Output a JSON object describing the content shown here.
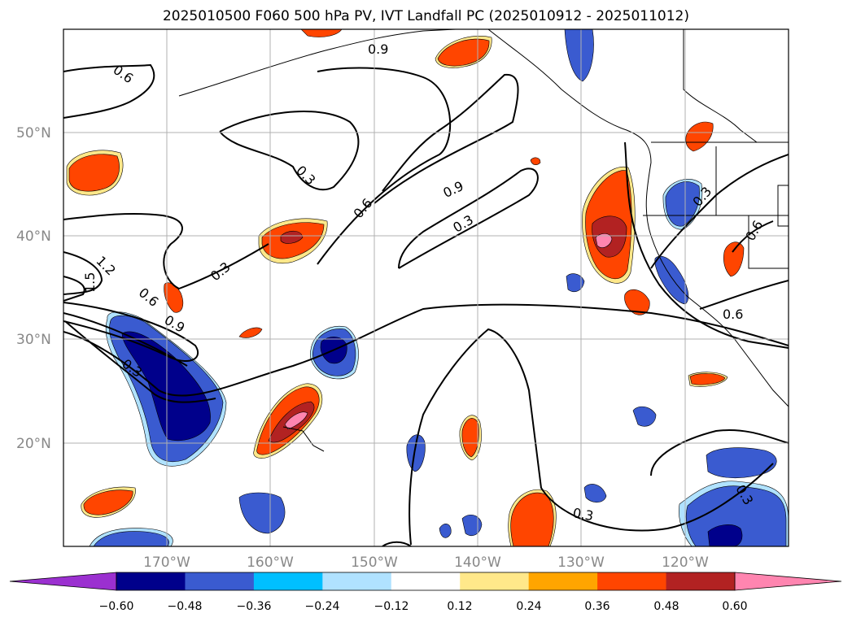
{
  "title": "2025010500 F060 500 hPa PV, IVT Landfall PC (2025010912 - 2025011012)",
  "map": {
    "lat_ticks": [
      {
        "value": 50,
        "label": "50°N"
      },
      {
        "value": 40,
        "label": "40°N"
      },
      {
        "value": 30,
        "label": "30°N"
      },
      {
        "value": 20,
        "label": "20°N"
      }
    ],
    "lon_ticks": [
      {
        "value": -170,
        "label": "170°W"
      },
      {
        "value": -160,
        "label": "160°W"
      },
      {
        "value": -150,
        "label": "150°W"
      },
      {
        "value": -140,
        "label": "140°W"
      },
      {
        "value": -130,
        "label": "130°W"
      },
      {
        "value": -120,
        "label": "120°W"
      }
    ],
    "contour_labels": [
      "0.9",
      "0.6",
      "0.3",
      "0.6",
      "0.9",
      "0.3",
      "0.3",
      "1.2",
      "1.5",
      "0.6",
      "0.9",
      "0.3",
      "0.3",
      "0.6",
      "0.3",
      "0.3",
      "0.6"
    ],
    "grid": true,
    "coastlines": true
  },
  "colorbar": {
    "colors": [
      "#9b30d0",
      "#00008b",
      "#3a5bd0",
      "#00bfff",
      "#b0e2ff",
      "#ffffff",
      "#ffe88a",
      "#ffa500",
      "#ff4500",
      "#b22222",
      "#ff85b0"
    ],
    "tick_labels": [
      "−0.60",
      "−0.48",
      "−0.36",
      "−0.24",
      "−0.12",
      "0.12",
      "0.24",
      "0.36",
      "0.48",
      "0.60"
    ]
  }
}
